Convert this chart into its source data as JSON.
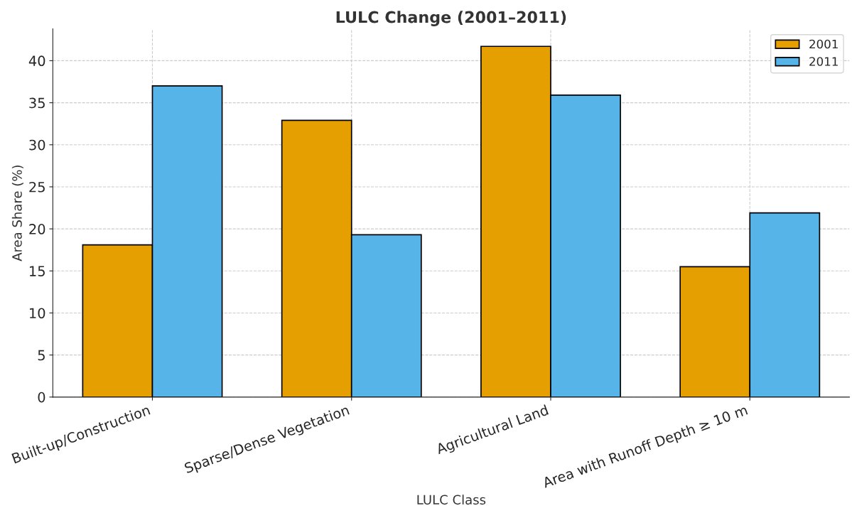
{
  "chart_data": {
    "type": "bar",
    "title": "LULC Change (2001–2011)",
    "xlabel": "LULC Class",
    "ylabel": "Area Share (%)",
    "categories": [
      "Built-up/Construction",
      "Sparse/Dense Vegetation",
      "Agricultural Land",
      "Area with Runoff Depth ≥ 10 m"
    ],
    "series": [
      {
        "name": "2001",
        "color": "#e69f00",
        "values": [
          18.1,
          32.9,
          41.7,
          15.5
        ]
      },
      {
        "name": "2011",
        "color": "#56b4e9",
        "values": [
          37.0,
          19.3,
          35.9,
          21.9
        ]
      }
    ],
    "ylim": [
      0,
      43.8
    ],
    "yticks": [
      0,
      5,
      10,
      15,
      20,
      25,
      30,
      35,
      40
    ],
    "grid": true,
    "legend": "top right"
  }
}
